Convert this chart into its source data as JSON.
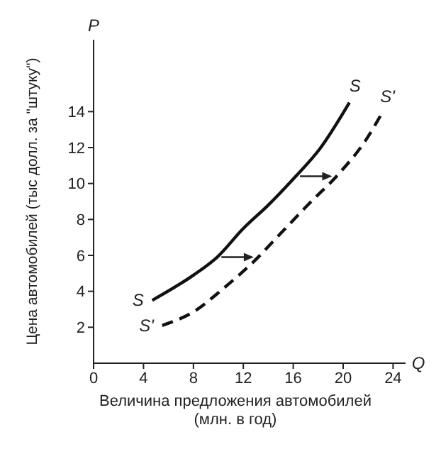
{
  "chart_data": {
    "type": "line",
    "xlabel": "Величина предложения автомобилей\n(млн. в год)",
    "ylabel": "Цена автомобилей (тыс долл. за \"штуку\")",
    "annotations": [
      "P",
      "Q"
    ],
    "xlim": [
      0,
      25
    ],
    "ylim": [
      0,
      18
    ],
    "xticks": [
      0,
      4,
      8,
      12,
      16,
      20,
      24
    ],
    "yticks": [
      2,
      4,
      6,
      8,
      10,
      12,
      14
    ],
    "grid": false,
    "legend": false,
    "marker": "none",
    "series": [
      {
        "name": "S",
        "color": "#111111",
        "line_style": "solid",
        "x": [
          4.7,
          8,
          9.9,
          12,
          14,
          16.2,
          18.1,
          20.5
        ],
        "values": [
          3.5,
          4.9,
          5.9,
          7.5,
          8.8,
          10.4,
          11.9,
          14.5
        ]
      },
      {
        "name": "S'",
        "color": "#111111",
        "line_style": "dashed",
        "x": [
          5.5,
          8.1,
          10.3,
          12.9,
          15.1,
          17.3,
          19.6,
          21.8,
          23.1
        ],
        "values": [
          2.1,
          2.9,
          4.1,
          5.7,
          7.3,
          8.9,
          10.5,
          12.4,
          13.9
        ]
      }
    ]
  }
}
